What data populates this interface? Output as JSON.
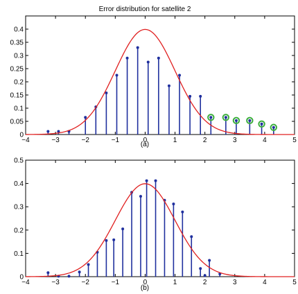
{
  "figure_title": "Error distribution for satellite 2",
  "colors": {
    "stem": "#1f2f9e",
    "curve": "#e02020",
    "highlight": "#3cae3c",
    "axis": "#000000"
  },
  "chart_data": [
    {
      "type": "stem",
      "panel_label": "(a)",
      "title": "Error distribution for satellite 2",
      "xlim": [
        -4,
        5
      ],
      "ylim": [
        0,
        0.45
      ],
      "xticks": [
        "−4",
        "−3",
        "−2",
        "−1",
        "0",
        "1",
        "2",
        "3",
        "4",
        "5"
      ],
      "yticks": [
        "0",
        "0.05",
        "0.1",
        "0.15",
        "0.2",
        "0.25",
        "0.3",
        "0.35",
        "0.4"
      ],
      "grid": false,
      "curve": "normal pdf, mean 0, std 1",
      "series": [
        {
          "x": [
            -3.25,
            -2.9,
            -2.55,
            -2.0,
            -1.65,
            -1.3,
            -0.95,
            -0.6,
            -0.25,
            0.1,
            0.45,
            0.8,
            1.15,
            1.5,
            1.85
          ],
          "values": [
            0.012,
            0.012,
            0.012,
            0.065,
            0.105,
            0.158,
            0.225,
            0.29,
            0.33,
            0.275,
            0.29,
            0.185,
            0.225,
            0.145,
            0.145
          ]
        },
        {
          "style": "circled",
          "x": [
            2.2,
            2.7,
            3.05,
            3.5,
            3.9,
            4.3
          ],
          "values": [
            0.065,
            0.065,
            0.053,
            0.053,
            0.04,
            0.027
          ]
        }
      ]
    },
    {
      "type": "stem",
      "panel_label": "(b)",
      "xlim": [
        -4,
        5
      ],
      "ylim": [
        0,
        0.5
      ],
      "xticks": [
        "−4",
        "−3",
        "−2",
        "−1",
        "0",
        "1",
        "2",
        "3",
        "4",
        "5"
      ],
      "yticks": [
        "0",
        "0.1",
        "0.2",
        "0.3",
        "0.4",
        "0.5"
      ],
      "grid": false,
      "curve": "normal pdf, mean 0, std 1",
      "series": [
        {
          "x": [
            -3.25,
            -2.9,
            -2.55,
            -2.2,
            -1.9,
            -1.6,
            -1.3,
            -1.05,
            -0.75,
            -0.45,
            -0.15,
            0.05,
            0.35,
            0.65,
            0.95,
            1.25,
            1.55,
            1.85,
            2.0,
            2.15,
            2.5
          ],
          "values": [
            0.017,
            0.002,
            0.002,
            0.02,
            0.052,
            0.105,
            0.155,
            0.158,
            0.205,
            0.362,
            0.345,
            0.412,
            0.412,
            0.328,
            0.312,
            0.278,
            0.172,
            0.035,
            0.005,
            0.07,
            0.012
          ]
        }
      ]
    }
  ]
}
